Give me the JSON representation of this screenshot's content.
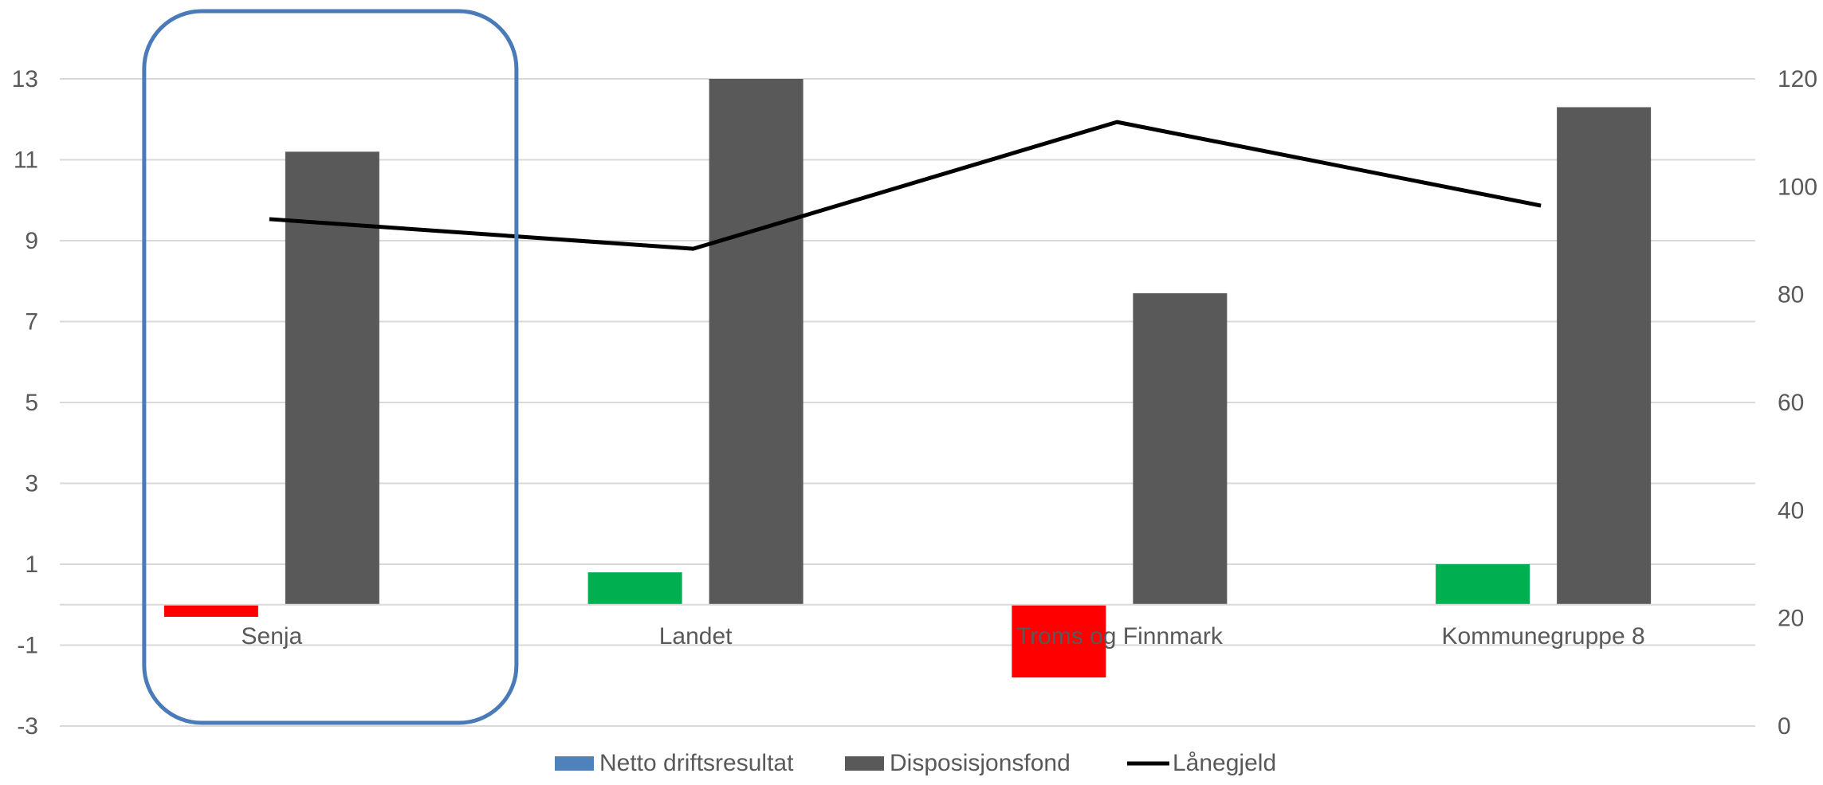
{
  "chart_data": {
    "type": "bar",
    "categories": [
      "Senja",
      "Landet",
      "Troms og Finnmark",
      "Kommunegruppe 8"
    ],
    "series": [
      {
        "name": "Netto driftsresultat",
        "axis": "left",
        "kind": "bar",
        "legend_color": "#4f81bd",
        "values": [
          -0.3,
          0.8,
          -1.8,
          1.0
        ],
        "bar_colors": [
          "#ff0000",
          "#00b050",
          "#ff0000",
          "#00b050"
        ]
      },
      {
        "name": "Disposisjonsfond",
        "axis": "left",
        "kind": "bar",
        "legend_color": "#595959",
        "values": [
          11.2,
          13.0,
          7.7,
          12.3
        ]
      },
      {
        "name": "Lånegjeld",
        "axis": "right",
        "kind": "line",
        "legend_color": "#000000",
        "values": [
          94,
          88.5,
          112,
          96.5
        ]
      }
    ],
    "y_left": {
      "min": -3,
      "max": 13,
      "ticks": [
        13,
        11,
        9,
        7,
        5,
        3,
        1,
        -1,
        -3
      ]
    },
    "y_right": {
      "min": 0,
      "max": 120,
      "ticks": [
        120,
        100,
        80,
        60,
        40,
        20,
        0
      ]
    },
    "grid": true,
    "legend_position": "bottom",
    "highlight": {
      "category": "Senja",
      "color": "#4a7ab7"
    },
    "title": "",
    "xlabel": "",
    "ylabel": ""
  }
}
